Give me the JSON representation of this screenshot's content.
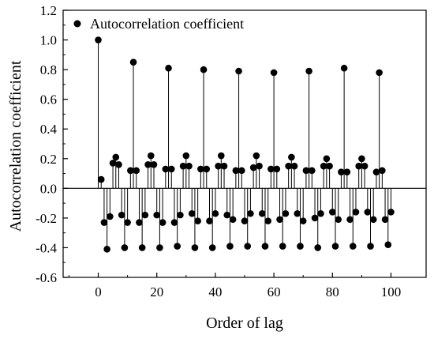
{
  "chart_data": {
    "type": "stem",
    "title": "",
    "xlabel": "Order of lag",
    "ylabel": "Autocorrelation coefficient",
    "xlim": [
      -12,
      112
    ],
    "ylim": [
      -0.6,
      1.2
    ],
    "xticks": [
      0,
      20,
      40,
      60,
      80,
      100
    ],
    "yticks": [
      -0.6,
      -0.4,
      -0.2,
      0.0,
      0.2,
      0.4,
      0.6,
      0.8,
      1.0,
      1.2
    ],
    "xtick_labels": [
      "0",
      "20",
      "40",
      "60",
      "80",
      "100"
    ],
    "ytick_labels": [
      "-0.6",
      "-0.4",
      "-0.2",
      "0.0",
      "0.2",
      "0.4",
      "0.6",
      "0.8",
      "1.0",
      "1.2"
    ],
    "baseline": 0,
    "grid": false,
    "legend_position": "top-left",
    "series": [
      {
        "name": "Autocorrelation coefficient",
        "marker": "circle",
        "color": "#000000",
        "x": [
          0,
          1,
          2,
          3,
          4,
          5,
          6,
          7,
          8,
          9,
          10,
          11,
          12,
          13,
          14,
          15,
          16,
          17,
          18,
          19,
          20,
          21,
          22,
          23,
          24,
          25,
          26,
          27,
          28,
          29,
          30,
          31,
          32,
          33,
          34,
          35,
          36,
          37,
          38,
          39,
          40,
          41,
          42,
          43,
          44,
          45,
          46,
          47,
          48,
          49,
          50,
          51,
          52,
          53,
          54,
          55,
          56,
          57,
          58,
          59,
          60,
          61,
          62,
          63,
          64,
          65,
          66,
          67,
          68,
          69,
          70,
          71,
          72,
          73,
          74,
          75,
          76,
          77,
          78,
          79,
          80,
          81,
          82,
          83,
          84,
          85,
          86,
          87,
          88,
          89,
          90,
          91,
          92,
          93,
          94,
          95,
          96,
          97,
          98,
          99,
          100
        ],
        "y": [
          1.0,
          0.06,
          -0.23,
          -0.41,
          -0.19,
          0.17,
          0.21,
          0.16,
          -0.18,
          -0.4,
          -0.23,
          0.12,
          0.85,
          0.12,
          -0.23,
          -0.4,
          -0.18,
          0.16,
          0.22,
          0.16,
          -0.18,
          -0.4,
          -0.23,
          0.13,
          0.81,
          0.13,
          -0.23,
          -0.39,
          -0.18,
          0.15,
          0.22,
          0.15,
          -0.17,
          -0.4,
          -0.22,
          0.13,
          0.8,
          0.13,
          -0.22,
          -0.4,
          -0.17,
          0.15,
          0.22,
          0.15,
          -0.18,
          -0.39,
          -0.21,
          0.12,
          0.79,
          0.12,
          -0.22,
          -0.39,
          -0.17,
          0.14,
          0.22,
          0.15,
          -0.17,
          -0.39,
          -0.22,
          0.13,
          0.78,
          0.13,
          -0.21,
          -0.39,
          -0.17,
          0.15,
          0.21,
          0.15,
          -0.17,
          -0.39,
          -0.22,
          0.12,
          0.79,
          0.12,
          -0.2,
          -0.4,
          -0.17,
          0.15,
          0.2,
          0.15,
          -0.16,
          -0.39,
          -0.21,
          0.11,
          0.81,
          0.11,
          -0.21,
          -0.39,
          -0.16,
          0.15,
          0.2,
          0.15,
          -0.16,
          -0.39,
          -0.21,
          0.11,
          0.78,
          0.12,
          -0.21,
          -0.38,
          -0.16
        ]
      }
    ]
  }
}
